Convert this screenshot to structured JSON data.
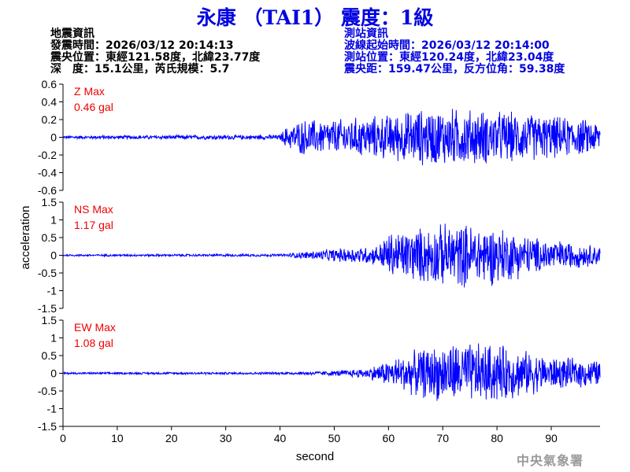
{
  "title": "永康 （TAI1） 震度：1級",
  "event_info": {
    "heading": "地震資訊",
    "origin_time": "發震時間：2026/03/12 20:14:13",
    "epicenter": "震央位置：東經121.58度，北緯23.77度",
    "depth_magnitude": "深　度：15.1公里，芮氏規模：5.7"
  },
  "station_info": {
    "heading": "測站資訊",
    "wave_start": "波線起始時間：2026/03/12 20:14:00",
    "location": "測站位置：東經120.24度，北緯23.04度",
    "distance": "震央距：159.47公里，反方位角：59.38度"
  },
  "watermark": "中央氣象署",
  "colors": {
    "title": "#0000e0",
    "trace": "#0000ff",
    "max_label": "#ee0000",
    "axis": "#000000",
    "watermark": "#9a9a9a"
  },
  "chart_data": {
    "type": "line",
    "xlabel": "second",
    "ylabel": "acceleration",
    "xlim": [
      0,
      99
    ],
    "xticks": [
      "0",
      "10",
      "20",
      "30",
      "40",
      "50",
      "60",
      "70",
      "80",
      "90"
    ],
    "grid": false,
    "panels": [
      {
        "name": "Z",
        "max_label": "Z Max",
        "max_value": "0.46 gal",
        "peak": 0.46,
        "ylim": [
          -0.6,
          0.6
        ],
        "yticks": [
          "0.6",
          "0.4",
          "0.2",
          "0",
          "-0.2",
          "-0.4",
          "-0.6"
        ],
        "envelope": [
          [
            0,
            0.02
          ],
          [
            40,
            0.03
          ],
          [
            41,
            0.12
          ],
          [
            44,
            0.22
          ],
          [
            50,
            0.22
          ],
          [
            60,
            0.28
          ],
          [
            66,
            0.35
          ],
          [
            72,
            0.36
          ],
          [
            85,
            0.3
          ],
          [
            99,
            0.2
          ]
        ]
      },
      {
        "name": "NS",
        "max_label": "NS Max",
        "max_value": "1.17 gal",
        "peak": 1.17,
        "ylim": [
          -1.5,
          1.5
        ],
        "yticks": [
          "1.5",
          "1",
          "0.5",
          "0",
          "-0.5",
          "-1",
          "-1.5"
        ],
        "envelope": [
          [
            0,
            0.03
          ],
          [
            40,
            0.04
          ],
          [
            44,
            0.1
          ],
          [
            50,
            0.2
          ],
          [
            58,
            0.3
          ],
          [
            60,
            0.7
          ],
          [
            66,
            0.85
          ],
          [
            72,
            1.0
          ],
          [
            80,
            0.9
          ],
          [
            87,
            0.55
          ],
          [
            99,
            0.3
          ]
        ]
      },
      {
        "name": "EW",
        "max_label": "EW Max",
        "max_value": "1.08 gal",
        "peak": 1.08,
        "ylim": [
          -1.5,
          1.5
        ],
        "yticks": [
          "1.5",
          "1",
          "0.5",
          "0",
          "-0.5",
          "-1",
          "-1.5"
        ],
        "envelope": [
          [
            0,
            0.03
          ],
          [
            42,
            0.04
          ],
          [
            50,
            0.08
          ],
          [
            56,
            0.15
          ],
          [
            60,
            0.4
          ],
          [
            66,
            0.75
          ],
          [
            72,
            0.95
          ],
          [
            80,
            0.9
          ],
          [
            90,
            0.5
          ],
          [
            99,
            0.4
          ]
        ]
      }
    ]
  }
}
